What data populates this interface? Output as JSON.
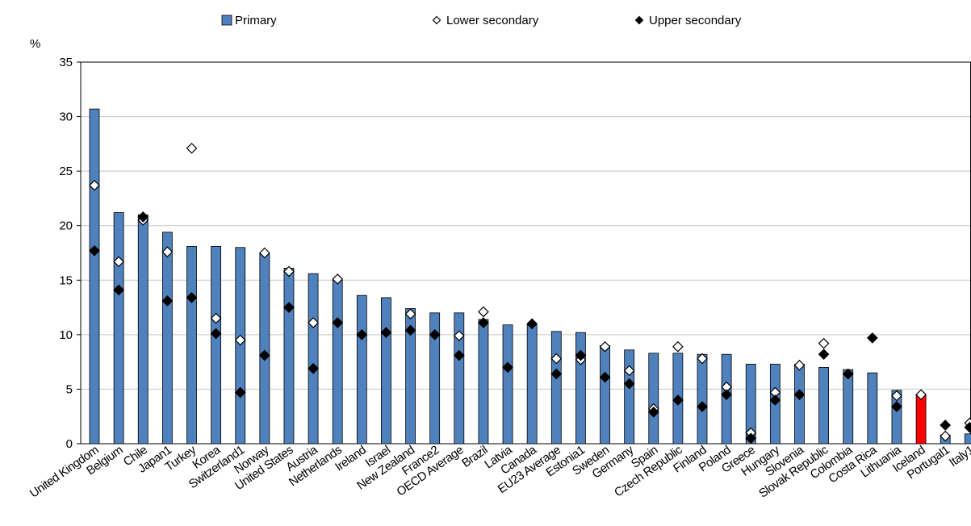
{
  "chart_data": {
    "type": "bar",
    "ylabel": "%",
    "ylim": [
      0,
      35
    ],
    "yticks": [
      0,
      5,
      10,
      15,
      20,
      25,
      30,
      35
    ],
    "grid": true,
    "legend_position": "top-center",
    "categories": [
      "United Kingdom",
      "Belgium",
      "Chile",
      "Japan1",
      "Turkey",
      "Korea",
      "Switzerland1",
      "Norway",
      "United States",
      "Austria",
      "Netherlands",
      "Ireland",
      "Israel",
      "New Zealand",
      "France2",
      "OECD Average",
      "Brazil",
      "Latvia",
      "Canada",
      "EU23 Average",
      "Estonia1",
      "Sweden",
      "Germany",
      "Spain",
      "Czech Republic",
      "Finland",
      "Poland",
      "Greece",
      "Hungary",
      "Slovenia",
      "Slovak Republic",
      "Colombia",
      "Costa Rica",
      "Lithuania",
      "Iceland",
      "Portugal1",
      "Italy1"
    ],
    "highlight_category": "Iceland",
    "series": [
      {
        "name": "Primary",
        "marker": "bar",
        "color": "#4f81bd",
        "highlight_color": "#ff0000",
        "values": [
          30.7,
          21.2,
          21.0,
          19.4,
          18.1,
          18.1,
          18.0,
          17.4,
          16.1,
          15.6,
          15.0,
          13.6,
          13.4,
          12.4,
          12.0,
          12.0,
          11.4,
          10.9,
          10.9,
          10.3,
          10.2,
          9.0,
          8.6,
          8.3,
          8.3,
          8.2,
          8.2,
          7.3,
          7.3,
          7.3,
          7.0,
          6.8,
          6.5,
          4.9,
          4.5,
          0.8,
          0.9
        ]
      },
      {
        "name": "Lower secondary",
        "marker": "diamond-open",
        "color": "#ffffff",
        "values": [
          23.7,
          16.7,
          20.5,
          17.6,
          27.1,
          11.5,
          9.5,
          17.5,
          15.8,
          11.1,
          15.1,
          null,
          null,
          11.9,
          null,
          9.9,
          12.1,
          null,
          null,
          7.8,
          7.7,
          8.9,
          6.7,
          3.2,
          8.9,
          7.8,
          5.2,
          1.0,
          4.7,
          7.2,
          9.2,
          null,
          null,
          4.4,
          4.5,
          0.7,
          1.9
        ]
      },
      {
        "name": "Upper secondary",
        "marker": "diamond-filled",
        "color": "#000000",
        "values": [
          17.7,
          14.1,
          20.8,
          13.1,
          13.4,
          10.1,
          4.7,
          8.1,
          12.5,
          6.9,
          11.1,
          10.0,
          10.2,
          10.4,
          10.0,
          8.1,
          11.1,
          7.0,
          11.0,
          6.4,
          8.1,
          6.1,
          5.5,
          2.9,
          4.0,
          3.4,
          4.5,
          0.5,
          4.0,
          4.5,
          8.2,
          6.4,
          9.7,
          3.4,
          null,
          1.7,
          1.5
        ]
      }
    ]
  }
}
